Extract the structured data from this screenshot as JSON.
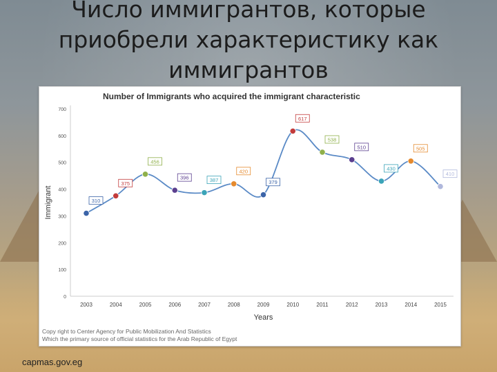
{
  "slide": {
    "title": "Число иммигрантов, которые\nприобрели характеристику как\nиммигрантов",
    "footer": "capmas.gov.eg"
  },
  "chart_data": {
    "type": "line",
    "title": "Number of Immigrants who acquired the immigrant characteristic",
    "xlabel": "Years",
    "ylabel": "Immigrant",
    "categories": [
      "2003",
      "2004",
      "2005",
      "2006",
      "2007",
      "2008",
      "2009",
      "2010",
      "2011",
      "2012",
      "2013",
      "2014",
      "2015"
    ],
    "values": [
      310,
      375,
      456,
      396,
      387,
      420,
      379,
      617,
      538,
      510,
      430,
      505,
      410
    ],
    "point_colors": [
      "#3b64a8",
      "#c23b3b",
      "#8fb04a",
      "#5b3f8f",
      "#3ba4b8",
      "#e58a2e",
      "#3b64a8",
      "#c23b3b",
      "#8fb04a",
      "#5b3f8f",
      "#3ba4b8",
      "#e58a2e",
      "#b0b8dc"
    ],
    "y_ticks": [
      0,
      100,
      200,
      300,
      400,
      500,
      600,
      700
    ],
    "y_tick_labels": [
      "0",
      "100",
      "200",
      "300",
      "400",
      "500",
      "600",
      "700"
    ],
    "ylim": [
      0,
      700
    ],
    "line_color": "#5a8ac6",
    "grid": false,
    "source": [
      "Copy right to Center Agency for Public Mobilization And Statistics",
      "Which the primary source of official statistics for the Arab Republic of Egypt"
    ]
  }
}
